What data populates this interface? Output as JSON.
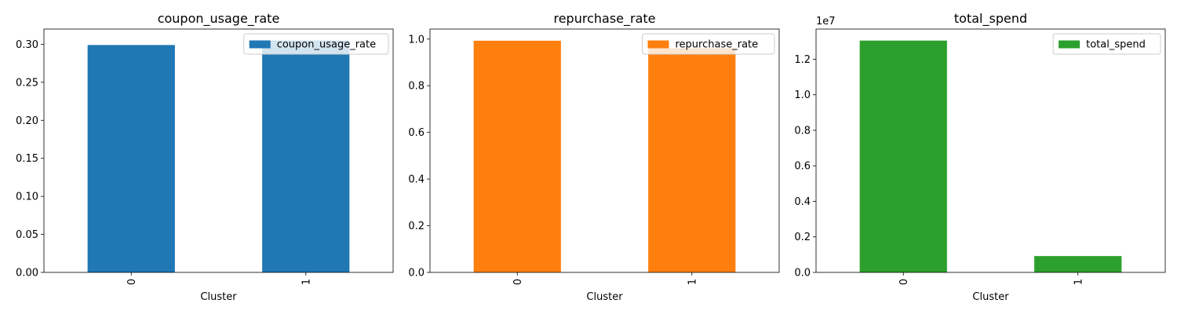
{
  "chart_data": [
    {
      "type": "bar",
      "title": "coupon_usage_rate",
      "xlabel": "Cluster",
      "ylabel": "",
      "categories": [
        "0",
        "1"
      ],
      "series": [
        {
          "name": "coupon_usage_rate",
          "values": [
            0.299,
            0.305
          ],
          "color": "#1f77b4"
        }
      ],
      "ylim": [
        0,
        0.32
      ],
      "yticks": [
        0.0,
        0.05,
        0.1,
        0.15,
        0.2,
        0.25,
        0.3
      ],
      "ytick_labels": [
        "0.00",
        "0.05",
        "0.10",
        "0.15",
        "0.20",
        "0.25",
        "0.30"
      ],
      "y_offset_label": "",
      "legend": "top-right",
      "grid": false
    },
    {
      "type": "bar",
      "title": "repurchase_rate",
      "xlabel": "Cluster",
      "ylabel": "",
      "categories": [
        "0",
        "1"
      ],
      "series": [
        {
          "name": "repurchase_rate",
          "values": [
            0.993,
            0.96
          ],
          "color": "#ff7f0e"
        }
      ],
      "ylim": [
        0,
        1.043
      ],
      "yticks": [
        0.0,
        0.2,
        0.4,
        0.6,
        0.8,
        1.0
      ],
      "ytick_labels": [
        "0.0",
        "0.2",
        "0.4",
        "0.6",
        "0.8",
        "1.0"
      ],
      "y_offset_label": "",
      "legend": "top-right",
      "grid": false
    },
    {
      "type": "bar",
      "title": "total_spend",
      "xlabel": "Cluster",
      "ylabel": "",
      "categories": [
        "0",
        "1"
      ],
      "series": [
        {
          "name": "total_spend",
          "values": [
            13050000,
            920000
          ],
          "color": "#2ca02c"
        }
      ],
      "ylim": [
        0,
        13700000
      ],
      "yticks": [
        0,
        2000000,
        4000000,
        6000000,
        8000000,
        10000000,
        12000000
      ],
      "ytick_labels": [
        "0.0",
        "0.2",
        "0.4",
        "0.6",
        "0.8",
        "1.0",
        "1.2"
      ],
      "y_offset_label": "1e7",
      "legend": "top-right",
      "grid": false
    }
  ]
}
